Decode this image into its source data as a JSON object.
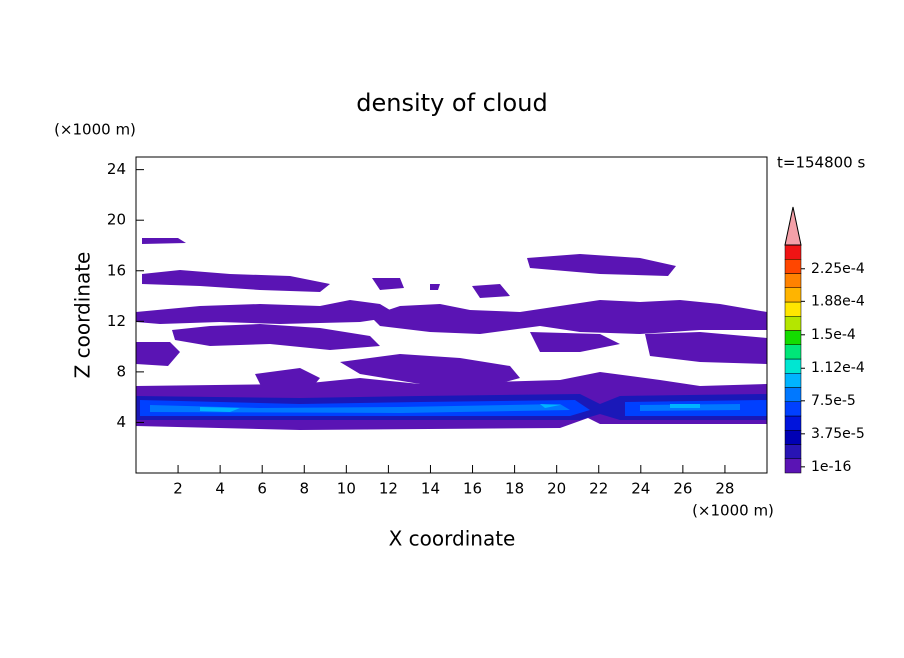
{
  "chart_data": {
    "type": "contour",
    "title": "density of cloud",
    "xlabel": "X coordinate",
    "ylabel": "Z coordinate",
    "xunit": "(×1000 m)",
    "yunit": "(×1000 m)",
    "annotation": "t=154800 s",
    "xlim": [
      0,
      30
    ],
    "xticks": [
      2,
      4,
      6,
      8,
      10,
      12,
      14,
      16,
      18,
      20,
      22,
      24,
      26,
      28
    ],
    "ylim": [
      0,
      25
    ],
    "yticks": [
      4,
      8,
      12,
      16,
      20,
      24
    ],
    "colorbar": {
      "lim": [
        -7e-06,
        0.000252
      ],
      "ticks": [
        {
          "value": 1e-16,
          "label": "1e-16"
        },
        {
          "value": 3.75e-05,
          "label": "3.75e-5"
        },
        {
          "value": 7.5e-05,
          "label": "7.5e-5"
        },
        {
          "value": 0.000112,
          "label": "1.12e-4"
        },
        {
          "value": 0.00015,
          "label": "1.5e-4"
        },
        {
          "value": 0.000188,
          "label": "1.88e-4"
        },
        {
          "value": 0.000225,
          "label": "2.25e-4"
        }
      ],
      "colors": [
        "#5a14b4",
        "#2814b4",
        "#0000b4",
        "#0014dc",
        "#0040ff",
        "#0078ff",
        "#00b4ff",
        "#00e6d2",
        "#00e678",
        "#14dc00",
        "#b4e600",
        "#ffe600",
        "#ffb400",
        "#ff8200",
        "#ff4600",
        "#f01414"
      ],
      "extend_color": "#f4a0a8"
    }
  }
}
